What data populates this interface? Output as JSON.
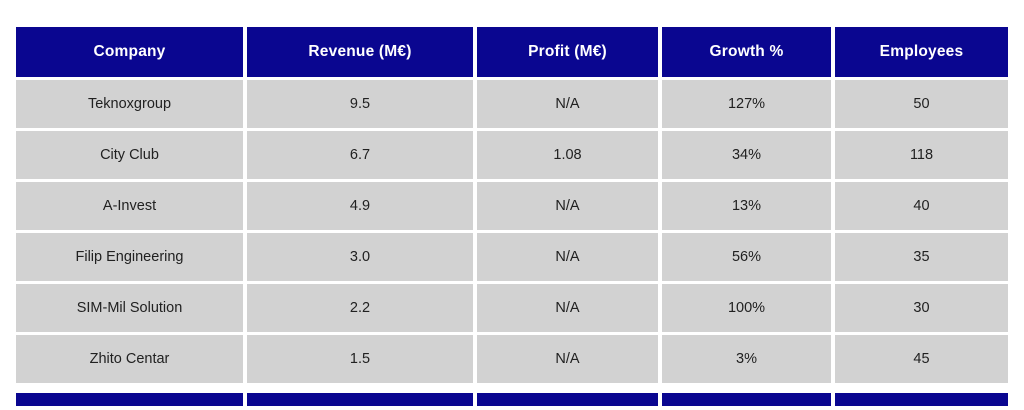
{
  "theme": {
    "page_bg": "#ffffff",
    "header_bg": "#0a0690",
    "header_text": "#ffffff",
    "row_bg": "#d2d2d2",
    "cell_text": "#212121",
    "gutter": "#ffffff"
  },
  "chart_data": {
    "type": "table",
    "title": "",
    "columns": [
      "Company",
      "Revenue (M€)",
      "Profit (M€)",
      "Growth %",
      "Employees"
    ],
    "rows": [
      [
        "Teknoxgroup",
        "9.5",
        "N/A",
        "127%",
        "50"
      ],
      [
        "City Club",
        "6.7",
        "1.08",
        "34%",
        "118"
      ],
      [
        "A-Invest",
        "4.9",
        "N/A",
        "13%",
        "40"
      ],
      [
        "Filip Engineering",
        "3.0",
        "N/A",
        "56%",
        "35"
      ],
      [
        "SIM-Mil Solution",
        "2.2",
        "N/A",
        "100%",
        "30"
      ],
      [
        "Zhito Centar",
        "1.5",
        "N/A",
        "3%",
        "45"
      ]
    ],
    "layout": {
      "grid": "white gutters between cells",
      "header_position": "top",
      "clipped_repeat_header_at_bottom": true
    }
  }
}
